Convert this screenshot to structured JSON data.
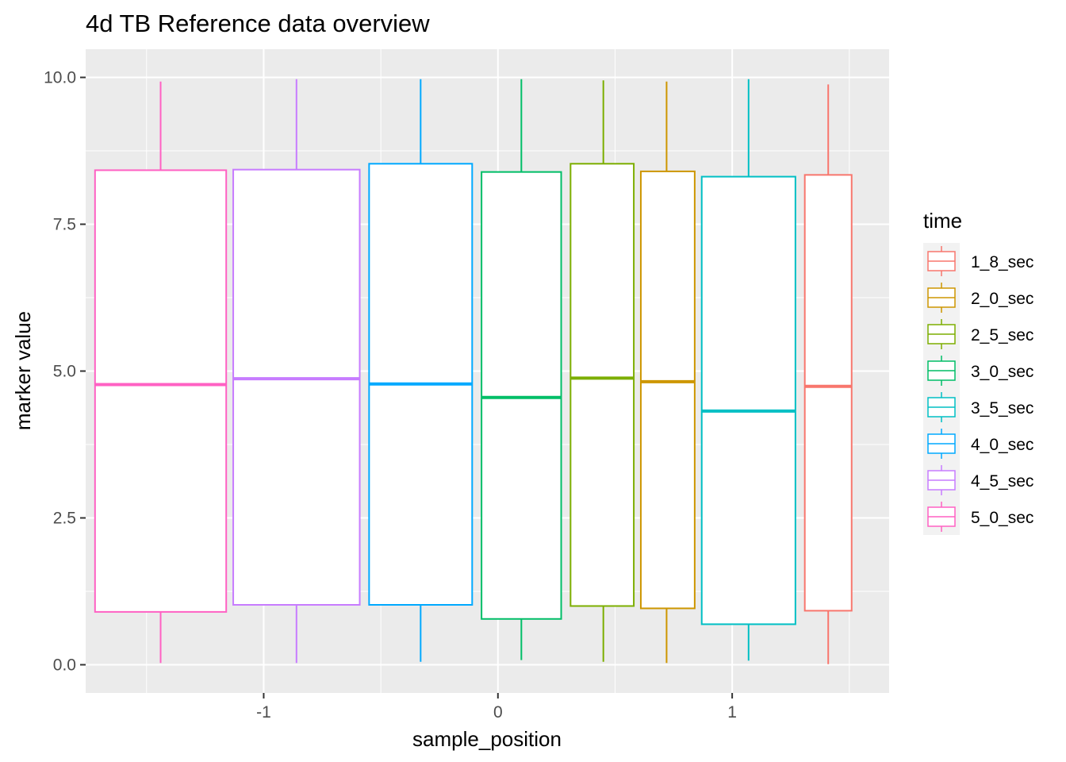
{
  "chart_data": {
    "type": "boxplot",
    "title": "4d TB Reference data overview",
    "xlabel": "sample_position",
    "ylabel": "marker value",
    "xlim": [
      -1.76,
      1.67
    ],
    "ylim": [
      -0.48,
      10.48
    ],
    "x_ticks": [
      -1,
      0,
      1
    ],
    "x_tick_labels": [
      "-1",
      "0",
      "1"
    ],
    "y_ticks": [
      0,
      2.5,
      5,
      7.5,
      10
    ],
    "y_tick_labels": [
      "0.0",
      "2.5",
      "5.0",
      "7.5",
      "10.0"
    ],
    "grid": true,
    "legend": {
      "title": "time",
      "position": "right",
      "entries": [
        "1_8_sec",
        "2_0_sec",
        "2_5_sec",
        "3_0_sec",
        "3_5_sec",
        "4_0_sec",
        "4_5_sec",
        "5_0_sec"
      ]
    },
    "series": [
      {
        "name": "5_0_sec",
        "color": "#FF61C3",
        "x_min": -1.72,
        "x_max": -1.16,
        "whisker_x": -1.44,
        "min": 0.03,
        "q1": 0.9,
        "median": 4.77,
        "q3": 8.42,
        "max": 9.93
      },
      {
        "name": "4_5_sec",
        "color": "#C77CFF",
        "x_min": -1.13,
        "x_max": -0.59,
        "whisker_x": -0.86,
        "min": 0.03,
        "q1": 1.02,
        "median": 4.87,
        "q3": 8.43,
        "max": 9.97
      },
      {
        "name": "4_0_sec",
        "color": "#00A9FF",
        "x_min": -0.55,
        "x_max": -0.11,
        "whisker_x": -0.33,
        "min": 0.05,
        "q1": 1.02,
        "median": 4.78,
        "q3": 8.53,
        "max": 9.97
      },
      {
        "name": "3_0_sec",
        "color": "#00BE67",
        "x_min": -0.07,
        "x_max": 0.27,
        "whisker_x": 0.1,
        "min": 0.08,
        "q1": 0.78,
        "median": 4.55,
        "q3": 8.39,
        "max": 9.97
      },
      {
        "name": "2_5_sec",
        "color": "#7CAE00",
        "x_min": 0.31,
        "x_max": 0.58,
        "whisker_x": 0.45,
        "min": 0.05,
        "q1": 1.0,
        "median": 4.88,
        "q3": 8.53,
        "max": 9.95
      },
      {
        "name": "2_0_sec",
        "color": "#CD9600",
        "x_min": 0.61,
        "x_max": 0.84,
        "whisker_x": 0.72,
        "min": 0.03,
        "q1": 0.96,
        "median": 4.82,
        "q3": 8.4,
        "max": 9.93
      },
      {
        "name": "3_5_sec",
        "color": "#00BFC4",
        "x_min": 0.87,
        "x_max": 1.27,
        "whisker_x": 1.07,
        "min": 0.07,
        "q1": 0.69,
        "median": 4.32,
        "q3": 8.31,
        "max": 9.97
      },
      {
        "name": "1_8_sec",
        "color": "#F8766D",
        "x_min": 1.31,
        "x_max": 1.51,
        "whisker_x": 1.41,
        "min": 0.01,
        "q1": 0.92,
        "median": 4.74,
        "q3": 8.34,
        "max": 9.88
      }
    ]
  }
}
